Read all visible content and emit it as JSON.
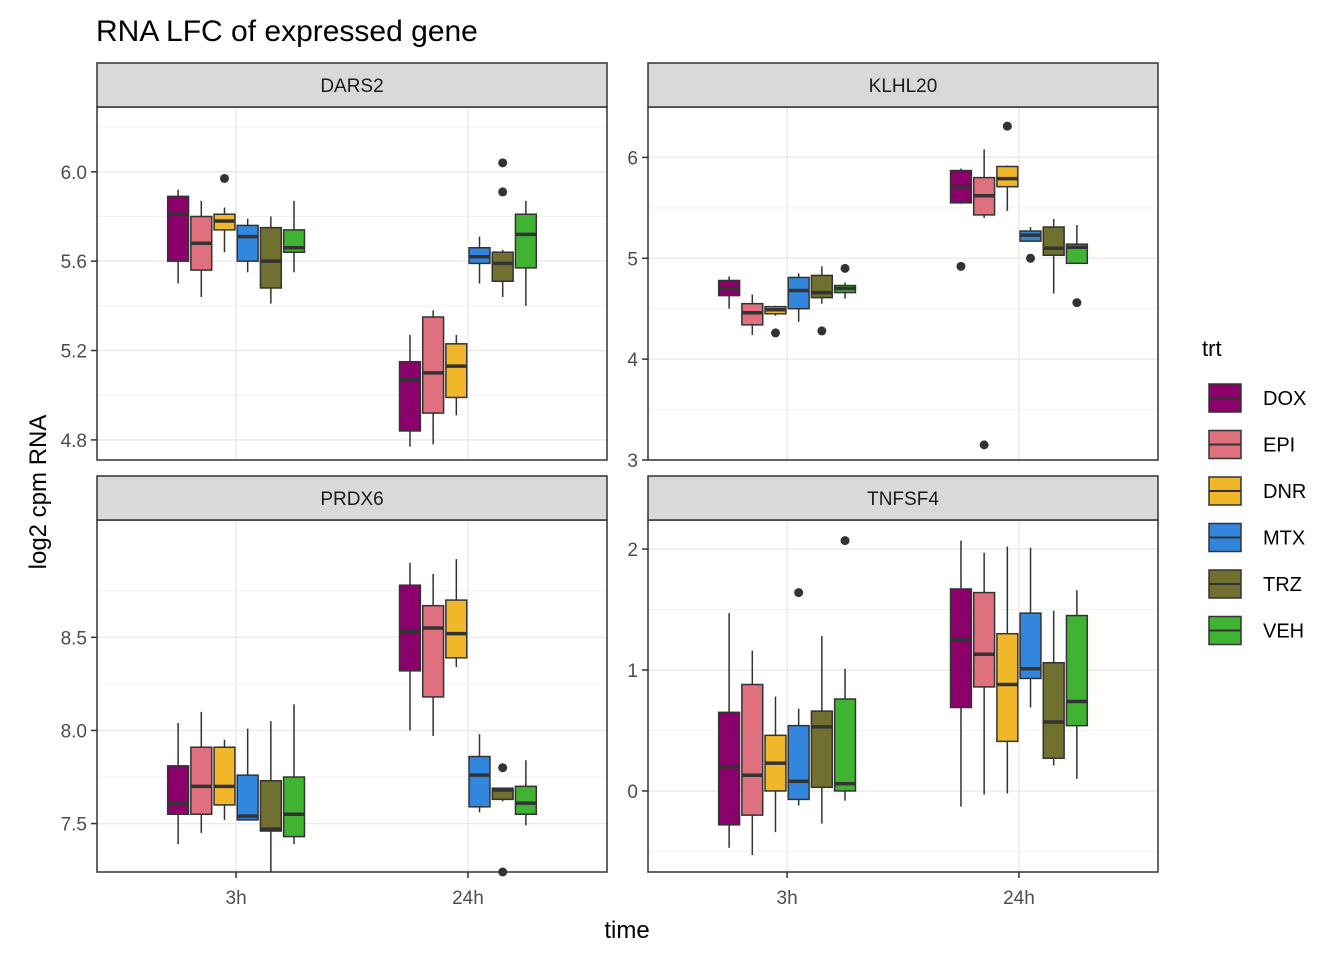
{
  "chart_data": {
    "type": "boxplot",
    "title": "RNA LFC of expressed gene",
    "xlabel": "time",
    "ylabel": "log2 cpm RNA",
    "legend": {
      "title": "trt",
      "placement": "right",
      "items": [
        {
          "name": "DOX",
          "color": "#8B006B"
        },
        {
          "name": "EPI",
          "color": "#DF707E"
        },
        {
          "name": "DNR",
          "color": "#F1B72B"
        },
        {
          "name": "MTX",
          "color": "#3386DD"
        },
        {
          "name": "TRZ",
          "color": "#707031"
        },
        {
          "name": "VEH",
          "color": "#41B333"
        }
      ]
    },
    "categories": [
      "3h",
      "24h"
    ],
    "grid": true,
    "facets": [
      {
        "name": "DARS2",
        "ylim": [
          4.71,
          6.29
        ],
        "yticks": [
          4.8,
          5.2,
          5.6,
          6.0
        ],
        "yticklabels": [
          "4.8",
          "5.2",
          "5.6",
          "6.0"
        ],
        "boxes": {
          "3h": [
            {
              "trt": "DOX",
              "min": 5.5,
              "q1": 5.6,
              "median": 5.81,
              "q3": 5.89,
              "max": 5.92,
              "outliers": []
            },
            {
              "trt": "EPI",
              "min": 5.44,
              "q1": 5.56,
              "median": 5.68,
              "q3": 5.8,
              "max": 5.87,
              "outliers": []
            },
            {
              "trt": "DNR",
              "min": 5.64,
              "q1": 5.74,
              "median": 5.78,
              "q3": 5.81,
              "max": 5.84,
              "outliers": [
                5.97
              ]
            },
            {
              "trt": "MTX",
              "min": 5.55,
              "q1": 5.6,
              "median": 5.71,
              "q3": 5.76,
              "max": 5.79,
              "outliers": []
            },
            {
              "trt": "TRZ",
              "min": 5.41,
              "q1": 5.48,
              "median": 5.6,
              "q3": 5.75,
              "max": 5.8,
              "outliers": []
            },
            {
              "trt": "VEH",
              "min": 5.55,
              "q1": 5.64,
              "median": 5.66,
              "q3": 5.74,
              "max": 5.87,
              "outliers": []
            }
          ],
          "24h": [
            {
              "trt": "DOX",
              "min": 4.77,
              "q1": 4.84,
              "median": 5.07,
              "q3": 5.15,
              "max": 5.27,
              "outliers": []
            },
            {
              "trt": "EPI",
              "min": 4.78,
              "q1": 4.92,
              "median": 5.1,
              "q3": 5.35,
              "max": 5.38,
              "outliers": []
            },
            {
              "trt": "DNR",
              "min": 4.91,
              "q1": 4.99,
              "median": 5.13,
              "q3": 5.23,
              "max": 5.27,
              "outliers": []
            },
            {
              "trt": "MTX",
              "min": 5.5,
              "q1": 5.59,
              "median": 5.62,
              "q3": 5.66,
              "max": 5.71,
              "outliers": []
            },
            {
              "trt": "TRZ",
              "min": 5.44,
              "q1": 5.51,
              "median": 5.59,
              "q3": 5.64,
              "max": 5.65,
              "outliers": [
                6.04,
                5.91
              ]
            },
            {
              "trt": "VEH",
              "min": 5.4,
              "q1": 5.57,
              "median": 5.72,
              "q3": 5.81,
              "max": 5.87,
              "outliers": []
            }
          ]
        }
      },
      {
        "name": "KLHL20",
        "ylim": [
          3.0,
          6.5
        ],
        "yticks": [
          3,
          4,
          5,
          6
        ],
        "yticklabels": [
          "3",
          "4",
          "5",
          "6"
        ],
        "boxes": {
          "3h": [
            {
              "trt": "DOX",
              "min": 4.5,
              "q1": 4.63,
              "median": 4.7,
              "q3": 4.78,
              "max": 4.82,
              "outliers": []
            },
            {
              "trt": "EPI",
              "min": 4.24,
              "q1": 4.34,
              "median": 4.46,
              "q3": 4.55,
              "max": 4.64,
              "outliers": []
            },
            {
              "trt": "DNR",
              "min": 4.43,
              "q1": 4.45,
              "median": 4.49,
              "q3": 4.52,
              "max": 4.53,
              "outliers": [
                4.26
              ]
            },
            {
              "trt": "MTX",
              "min": 4.37,
              "q1": 4.5,
              "median": 4.68,
              "q3": 4.81,
              "max": 4.85,
              "outliers": []
            },
            {
              "trt": "TRZ",
              "min": 4.55,
              "q1": 4.61,
              "median": 4.66,
              "q3": 4.83,
              "max": 4.92,
              "outliers": [
                4.28
              ]
            },
            {
              "trt": "VEH",
              "min": 4.6,
              "q1": 4.66,
              "median": 4.7,
              "q3": 4.73,
              "max": 4.76,
              "outliers": [
                4.9
              ]
            }
          ],
          "24h": [
            {
              "trt": "DOX",
              "min": 5.54,
              "q1": 5.55,
              "median": 5.71,
              "q3": 5.87,
              "max": 5.89,
              "outliers": [
                4.92
              ]
            },
            {
              "trt": "EPI",
              "min": 5.4,
              "q1": 5.43,
              "median": 5.62,
              "q3": 5.8,
              "max": 6.08,
              "outliers": [
                3.15
              ]
            },
            {
              "trt": "DNR",
              "min": 5.47,
              "q1": 5.71,
              "median": 5.79,
              "q3": 5.91,
              "max": 5.92,
              "outliers": [
                6.31
              ]
            },
            {
              "trt": "MTX",
              "min": 5.17,
              "q1": 5.17,
              "median": 5.23,
              "q3": 5.27,
              "max": 5.31,
              "outliers": [
                5.0
              ]
            },
            {
              "trt": "TRZ",
              "min": 4.65,
              "q1": 5.03,
              "median": 5.1,
              "q3": 5.31,
              "max": 5.39,
              "outliers": []
            },
            {
              "trt": "VEH",
              "min": 4.95,
              "q1": 4.95,
              "median": 5.11,
              "q3": 5.14,
              "max": 5.33,
              "outliers": [
                4.56
              ]
            }
          ]
        }
      },
      {
        "name": "PRDX6",
        "ylim": [
          7.24,
          9.13
        ],
        "yticks": [
          7.5,
          8.0,
          8.5
        ],
        "yticklabels": [
          "7.5",
          "8.0",
          "8.5"
        ],
        "boxes": {
          "3h": [
            {
              "trt": "DOX",
              "min": 7.39,
              "q1": 7.55,
              "median": 7.61,
              "q3": 7.81,
              "max": 8.04,
              "outliers": []
            },
            {
              "trt": "EPI",
              "min": 7.45,
              "q1": 7.55,
              "median": 7.7,
              "q3": 7.91,
              "max": 8.1,
              "outliers": []
            },
            {
              "trt": "DNR",
              "min": 7.52,
              "q1": 7.6,
              "median": 7.7,
              "q3": 7.91,
              "max": 7.95,
              "outliers": []
            },
            {
              "trt": "MTX",
              "min": 7.52,
              "q1": 7.52,
              "median": 7.54,
              "q3": 7.76,
              "max": 8.01,
              "outliers": []
            },
            {
              "trt": "TRZ",
              "min": 7.24,
              "q1": 7.46,
              "median": 7.47,
              "q3": 7.73,
              "max": 8.05,
              "outliers": []
            },
            {
              "trt": "VEH",
              "min": 7.39,
              "q1": 7.43,
              "median": 7.55,
              "q3": 7.75,
              "max": 8.14,
              "outliers": []
            }
          ],
          "24h": [
            {
              "trt": "DOX",
              "min": 8.0,
              "q1": 8.32,
              "median": 8.53,
              "q3": 8.78,
              "max": 8.9,
              "outliers": []
            },
            {
              "trt": "EPI",
              "min": 7.97,
              "q1": 8.18,
              "median": 8.55,
              "q3": 8.67,
              "max": 8.84,
              "outliers": []
            },
            {
              "trt": "DNR",
              "min": 8.34,
              "q1": 8.39,
              "median": 8.52,
              "q3": 8.7,
              "max": 8.92,
              "outliers": []
            },
            {
              "trt": "MTX",
              "min": 7.56,
              "q1": 7.59,
              "median": 7.76,
              "q3": 7.86,
              "max": 7.98,
              "outliers": []
            },
            {
              "trt": "TRZ",
              "min": 7.62,
              "q1": 7.63,
              "median": 7.68,
              "q3": 7.69,
              "max": 7.69,
              "outliers": [
                7.8,
                7.24
              ]
            },
            {
              "trt": "VEH",
              "min": 7.49,
              "q1": 7.55,
              "median": 7.61,
              "q3": 7.7,
              "max": 7.84,
              "outliers": []
            }
          ]
        }
      },
      {
        "name": "TNFSF4",
        "ylim": [
          -0.67,
          2.24
        ],
        "yticks": [
          0,
          1,
          2
        ],
        "yticklabels": [
          "0",
          "1",
          "2"
        ],
        "boxes": {
          "3h": [
            {
              "trt": "DOX",
              "min": -0.47,
              "q1": -0.28,
              "median": 0.2,
              "q3": 0.65,
              "max": 1.47,
              "outliers": []
            },
            {
              "trt": "EPI",
              "min": -0.53,
              "q1": -0.2,
              "median": 0.13,
              "q3": 0.88,
              "max": 1.16,
              "outliers": []
            },
            {
              "trt": "DNR",
              "min": -0.34,
              "q1": 0.0,
              "median": 0.23,
              "q3": 0.46,
              "max": 0.78,
              "outliers": []
            },
            {
              "trt": "MTX",
              "min": -0.12,
              "q1": -0.07,
              "median": 0.08,
              "q3": 0.54,
              "max": 0.68,
              "outliers": [
                1.64
              ]
            },
            {
              "trt": "TRZ",
              "min": -0.27,
              "q1": 0.03,
              "median": 0.53,
              "q3": 0.66,
              "max": 1.28,
              "outliers": []
            },
            {
              "trt": "VEH",
              "min": -0.08,
              "q1": 0.0,
              "median": 0.06,
              "q3": 0.76,
              "max": 1.01,
              "outliers": [
                2.07
              ]
            }
          ],
          "24h": [
            {
              "trt": "DOX",
              "min": -0.13,
              "q1": 0.69,
              "median": 1.25,
              "q3": 1.67,
              "max": 2.07,
              "outliers": []
            },
            {
              "trt": "EPI",
              "min": -0.03,
              "q1": 0.86,
              "median": 1.13,
              "q3": 1.64,
              "max": 1.97,
              "outliers": []
            },
            {
              "trt": "DNR",
              "min": -0.02,
              "q1": 0.41,
              "median": 0.88,
              "q3": 1.3,
              "max": 2.02,
              "outliers": []
            },
            {
              "trt": "MTX",
              "min": 0.69,
              "q1": 0.93,
              "median": 1.01,
              "q3": 1.47,
              "max": 2.01,
              "outliers": []
            },
            {
              "trt": "TRZ",
              "min": 0.21,
              "q1": 0.27,
              "median": 0.57,
              "q3": 1.06,
              "max": 1.49,
              "outliers": []
            },
            {
              "trt": "VEH",
              "min": 0.1,
              "q1": 0.54,
              "median": 0.74,
              "q3": 1.45,
              "max": 1.66,
              "outliers": []
            }
          ]
        }
      }
    ]
  }
}
